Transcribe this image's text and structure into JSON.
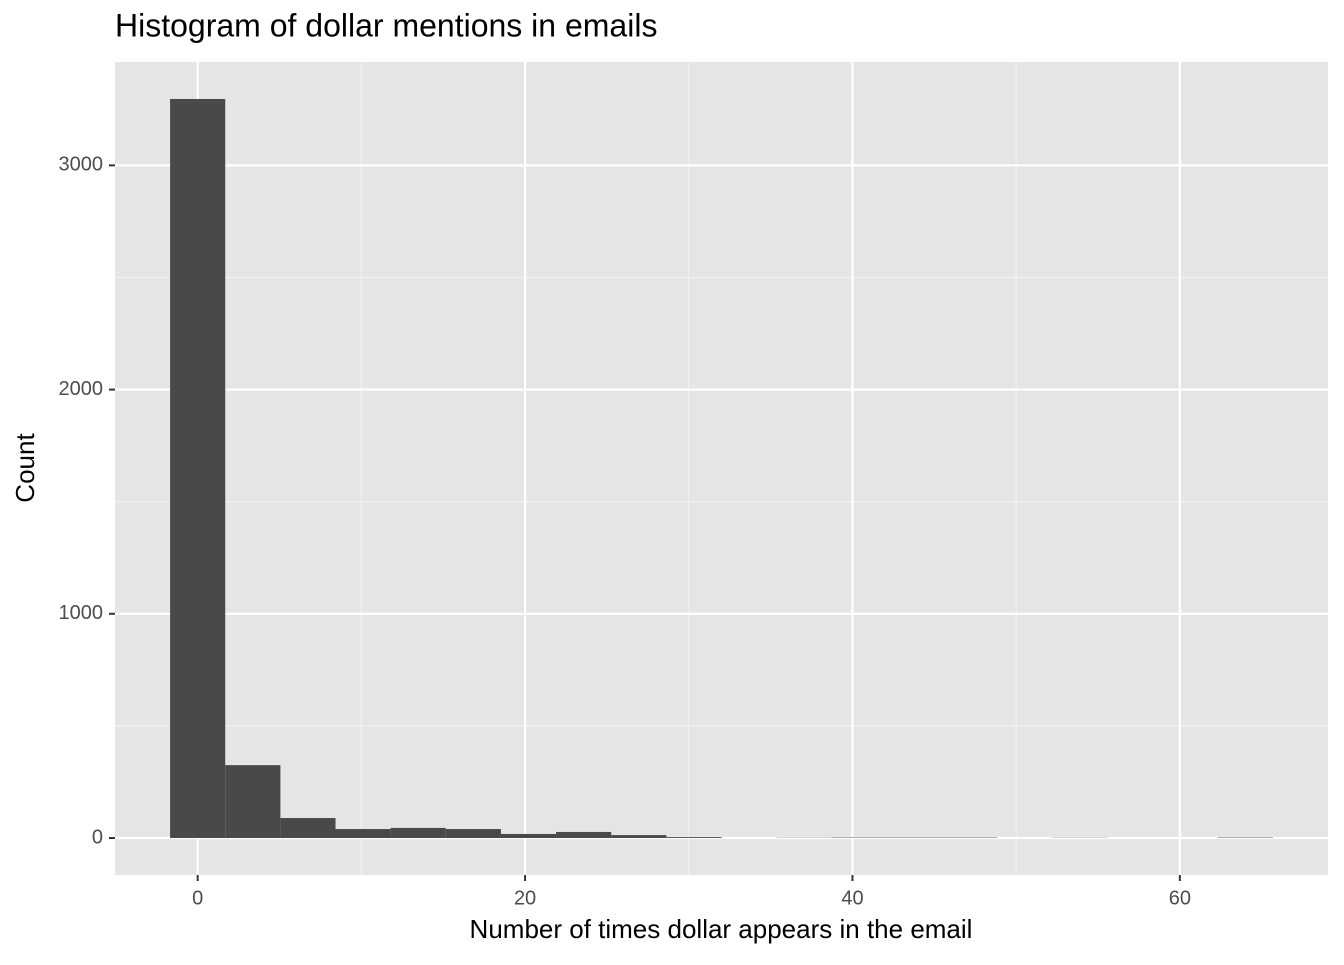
{
  "chart_data": {
    "type": "histogram",
    "title": "Histogram of dollar mentions in emails",
    "x_label": "Number of times dollar appears in the email",
    "y_label": "Count",
    "bins": [
      -1.684,
      1.684,
      5.053,
      8.421,
      11.789,
      15.158,
      18.526,
      21.895,
      25.263,
      28.632,
      32,
      35.368,
      38.737,
      42.105,
      45.474,
      48.842,
      52.211,
      55.579,
      58.947,
      62.316,
      65.684
    ],
    "values": [
      3296,
      325,
      89,
      40,
      45,
      40,
      18,
      27,
      13,
      4,
      0,
      1,
      2,
      2,
      2,
      0,
      1,
      0,
      0,
      2
    ],
    "color": "#494949",
    "xlim": [
      -5.05,
      69.05
    ],
    "xticks": [
      0,
      20,
      40,
      60
    ],
    "ylim": [
      -165,
      3461
    ],
    "yticks": [
      0,
      1000,
      2000,
      3000
    ],
    "grid": true
  }
}
